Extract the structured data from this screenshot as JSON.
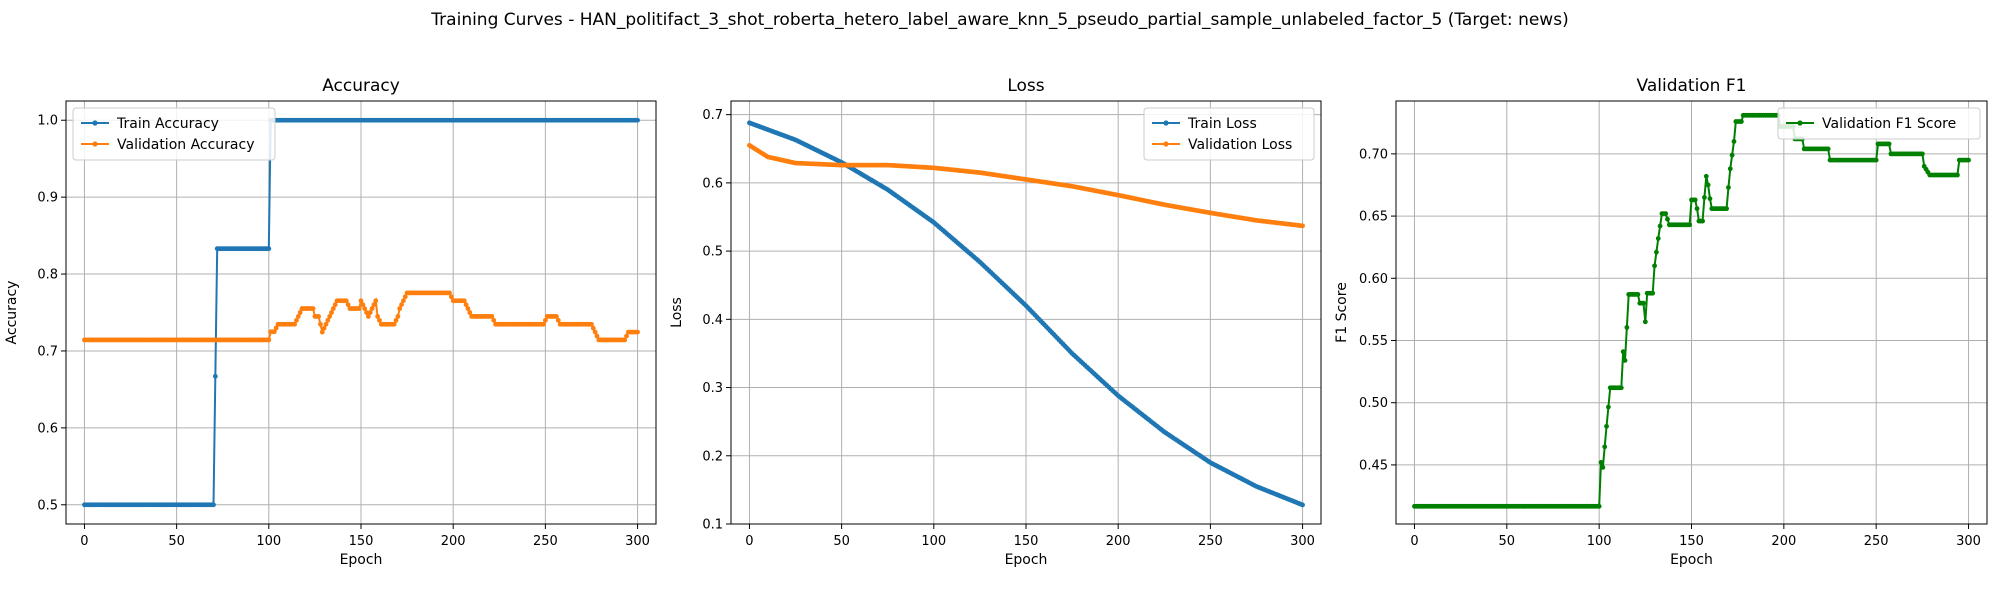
{
  "figure_title": "Training Curves - HAN_politifact_3_shot_roberta_hetero_label_aware_knn_5_pseudo_partial_sample_unlabeled_factor_5 (Target: news)",
  "colors": {
    "blue": "#1f77b4",
    "orange": "#ff7f0e",
    "green": "#008000"
  },
  "chart_data": [
    {
      "type": "line",
      "title": "Accuracy",
      "xlabel": "Epoch",
      "ylabel": "Accuracy",
      "xlim": [
        -10,
        310
      ],
      "ylim": [
        0.475,
        1.025
      ],
      "xticks": [
        0,
        50,
        100,
        150,
        200,
        250,
        300
      ],
      "yticks": [
        0.5,
        0.6,
        0.7,
        0.8,
        0.9,
        1.0
      ],
      "ytick_labels": [
        "0.5",
        "0.6",
        "0.7",
        "0.8",
        "0.9",
        "1.0"
      ],
      "grid": true,
      "legend_position": "top-left",
      "x_range": [
        0,
        300
      ],
      "series": [
        {
          "name": "Train Accuracy",
          "color": "#1f77b4",
          "knots": [
            [
              0,
              0.5
            ],
            [
              70,
              0.5
            ],
            [
              71,
              0.667
            ],
            [
              72,
              0.833
            ],
            [
              100,
              0.833
            ],
            [
              101,
              1.0
            ],
            [
              300,
              1.0
            ]
          ]
        },
        {
          "name": "Validation Accuracy",
          "color": "#ff7f0e",
          "knots": [
            [
              0,
              0.7143
            ],
            [
              100,
              0.7143
            ],
            [
              101,
              0.725
            ],
            [
              103,
              0.725
            ],
            [
              105,
              0.7347
            ],
            [
              114,
              0.7347
            ],
            [
              116,
              0.7449
            ],
            [
              118,
              0.7551
            ],
            [
              124,
              0.7551
            ],
            [
              125,
              0.7449
            ],
            [
              127,
              0.7449
            ],
            [
              129,
              0.7245
            ],
            [
              131,
              0.7347
            ],
            [
              133,
              0.7449
            ],
            [
              135,
              0.7551
            ],
            [
              137,
              0.7653
            ],
            [
              142,
              0.7653
            ],
            [
              144,
              0.7551
            ],
            [
              149,
              0.7551
            ],
            [
              150,
              0.7653
            ],
            [
              152,
              0.7551
            ],
            [
              154,
              0.7449
            ],
            [
              156,
              0.7551
            ],
            [
              158,
              0.7653
            ],
            [
              159,
              0.7449
            ],
            [
              161,
              0.7347
            ],
            [
              168,
              0.7347
            ],
            [
              170,
              0.7449
            ],
            [
              171,
              0.7551
            ],
            [
              173,
              0.7653
            ],
            [
              175,
              0.7755
            ],
            [
              198,
              0.7755
            ],
            [
              200,
              0.7653
            ],
            [
              206,
              0.7653
            ],
            [
              208,
              0.7551
            ],
            [
              210,
              0.7449
            ],
            [
              221,
              0.7449
            ],
            [
              223,
              0.7347
            ],
            [
              249,
              0.7347
            ],
            [
              251,
              0.7449
            ],
            [
              256,
              0.7449
            ],
            [
              258,
              0.7347
            ],
            [
              275,
              0.7347
            ],
            [
              277,
              0.7245
            ],
            [
              279,
              0.7143
            ],
            [
              293,
              0.7143
            ],
            [
              295,
              0.7245
            ],
            [
              300,
              0.7245
            ]
          ]
        }
      ]
    },
    {
      "type": "line",
      "title": "Loss",
      "xlabel": "Epoch",
      "ylabel": "Loss",
      "xlim": [
        -10,
        310
      ],
      "ylim": [
        0.1,
        0.72
      ],
      "xticks": [
        0,
        50,
        100,
        150,
        200,
        250,
        300
      ],
      "yticks": [
        0.1,
        0.2,
        0.3,
        0.4,
        0.5,
        0.6,
        0.7
      ],
      "ytick_labels": [
        "0.1",
        "0.2",
        "0.3",
        "0.4",
        "0.5",
        "0.6",
        "0.7"
      ],
      "grid": true,
      "legend_position": "top-right",
      "x_range": [
        0,
        300
      ],
      "series": [
        {
          "name": "Train Loss",
          "color": "#1f77b4",
          "knots": [
            [
              0,
              0.688
            ],
            [
              25,
              0.663
            ],
            [
              50,
              0.63
            ],
            [
              75,
              0.59
            ],
            [
              100,
              0.542
            ],
            [
              125,
              0.484
            ],
            [
              150,
              0.42
            ],
            [
              175,
              0.35
            ],
            [
              200,
              0.288
            ],
            [
              225,
              0.235
            ],
            [
              250,
              0.19
            ],
            [
              275,
              0.155
            ],
            [
              300,
              0.128
            ]
          ]
        },
        {
          "name": "Validation Loss",
          "color": "#ff7f0e",
          "knots": [
            [
              0,
              0.655
            ],
            [
              10,
              0.638
            ],
            [
              25,
              0.629
            ],
            [
              50,
              0.626
            ],
            [
              75,
              0.626
            ],
            [
              100,
              0.622
            ],
            [
              125,
              0.615
            ],
            [
              150,
              0.605
            ],
            [
              175,
              0.595
            ],
            [
              200,
              0.582
            ],
            [
              225,
              0.568
            ],
            [
              250,
              0.556
            ],
            [
              275,
              0.545
            ],
            [
              300,
              0.537
            ]
          ]
        }
      ]
    },
    {
      "type": "line",
      "title": "Validation F1",
      "xlabel": "Epoch",
      "ylabel": "F1 Score",
      "xlim": [
        -10,
        310
      ],
      "ylim": [
        0.4025,
        0.7425
      ],
      "xticks": [
        0,
        50,
        100,
        150,
        200,
        250,
        300
      ],
      "yticks": [
        0.45,
        0.5,
        0.55,
        0.6,
        0.65,
        0.7
      ],
      "ytick_labels": [
        "0.45",
        "0.50",
        "0.55",
        "0.60",
        "0.65",
        "0.70"
      ],
      "grid": true,
      "legend_position": "top-right",
      "x_range": [
        0,
        300
      ],
      "series": [
        {
          "name": "Validation F1 Score",
          "color": "#008000",
          "knots": [
            [
              0,
              0.4167
            ],
            [
              100,
              0.4167
            ],
            [
              101,
              0.452
            ],
            [
              102,
              0.448
            ],
            [
              104,
              0.481
            ],
            [
              106,
              0.512
            ],
            [
              112,
              0.512
            ],
            [
              113,
              0.541
            ],
            [
              114,
              0.534
            ],
            [
              116,
              0.587
            ],
            [
              121,
              0.587
            ],
            [
              122,
              0.58
            ],
            [
              124,
              0.58
            ],
            [
              125,
              0.565
            ],
            [
              126,
              0.588
            ],
            [
              129,
              0.588
            ],
            [
              130,
              0.61
            ],
            [
              132,
              0.632
            ],
            [
              134,
              0.652
            ],
            [
              136,
              0.652
            ],
            [
              138,
              0.643
            ],
            [
              149,
              0.643
            ],
            [
              150,
              0.663
            ],
            [
              152,
              0.663
            ],
            [
              153,
              0.656
            ],
            [
              154,
              0.646
            ],
            [
              156,
              0.646
            ],
            [
              157,
              0.665
            ],
            [
              158,
              0.682
            ],
            [
              159,
              0.675
            ],
            [
              160,
              0.664
            ],
            [
              161,
              0.656
            ],
            [
              169,
              0.656
            ],
            [
              170,
              0.673
            ],
            [
              171,
              0.688
            ],
            [
              173,
              0.71
            ],
            [
              174,
              0.726
            ],
            [
              177,
              0.726
            ],
            [
              178,
              0.731
            ],
            [
              197,
              0.731
            ],
            [
              198,
              0.722
            ],
            [
              205,
              0.722
            ],
            [
              206,
              0.712
            ],
            [
              210,
              0.712
            ],
            [
              211,
              0.704
            ],
            [
              224,
              0.704
            ],
            [
              225,
              0.695
            ],
            [
              250,
              0.695
            ],
            [
              251,
              0.708
            ],
            [
              257,
              0.708
            ],
            [
              258,
              0.7
            ],
            [
              275,
              0.7
            ],
            [
              276,
              0.69
            ],
            [
              279,
              0.683
            ],
            [
              294,
              0.683
            ],
            [
              295,
              0.695
            ],
            [
              300,
              0.695
            ]
          ]
        }
      ]
    }
  ]
}
